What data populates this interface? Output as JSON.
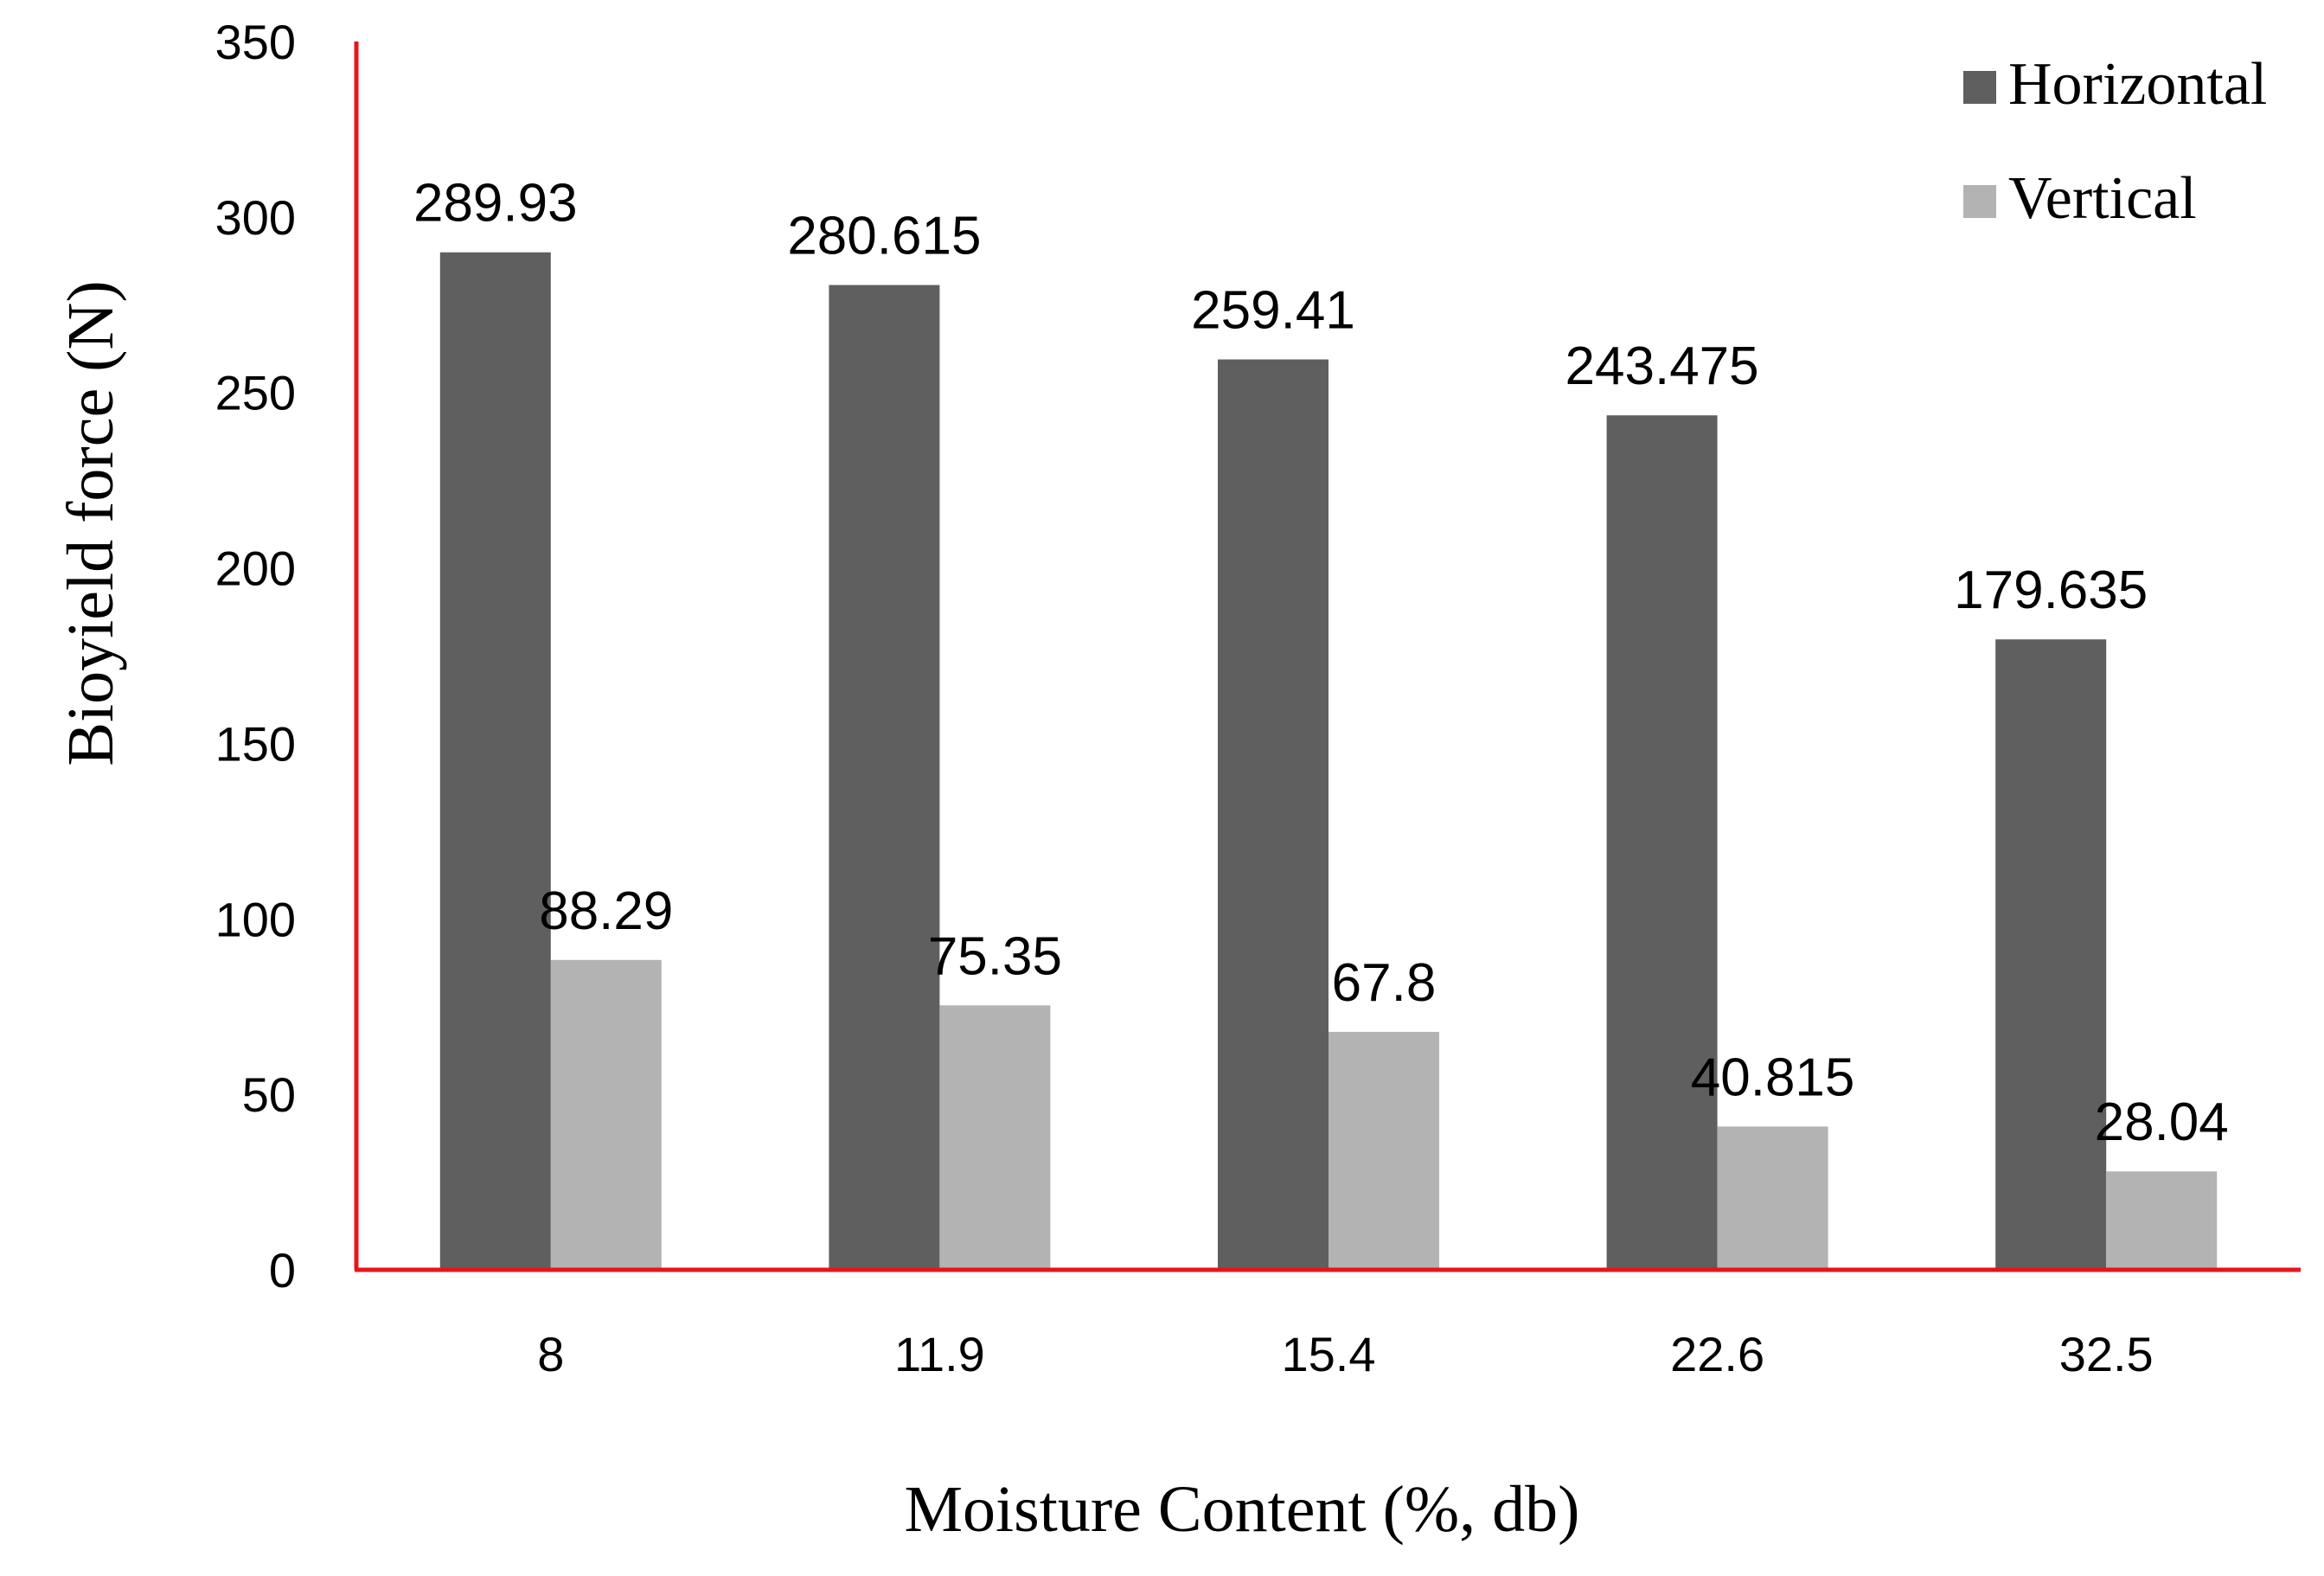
{
  "chart_data": {
    "type": "bar",
    "xlabel": "Moisture Content (%, db)",
    "ylabel": "Bioyield force (N)",
    "categories": [
      "8",
      "11.9",
      "15.4",
      "22.6",
      "32.5"
    ],
    "series": [
      {
        "name": "Horizontal",
        "color": "#5f5f5f",
        "values": [
          289.93,
          280.615,
          259.41,
          243.475,
          179.635
        ]
      },
      {
        "name": "Vertical",
        "color": "#b3b3b3",
        "values": [
          88.29,
          75.35,
          67.8,
          40.815,
          28.04
        ]
      }
    ],
    "data_labels": [
      [
        "289.93",
        "280.615",
        "259.41",
        "243.475",
        "179.635"
      ],
      [
        "88.29",
        "75.35",
        "67.8",
        "40.815",
        "28.04"
      ]
    ],
    "ylim": [
      0,
      350
    ],
    "yticks": [
      "0",
      "50",
      "100",
      "150",
      "200",
      "250",
      "300",
      "350"
    ],
    "legend_position": "top-right",
    "grid": false,
    "axis_color": "#e8141c"
  }
}
